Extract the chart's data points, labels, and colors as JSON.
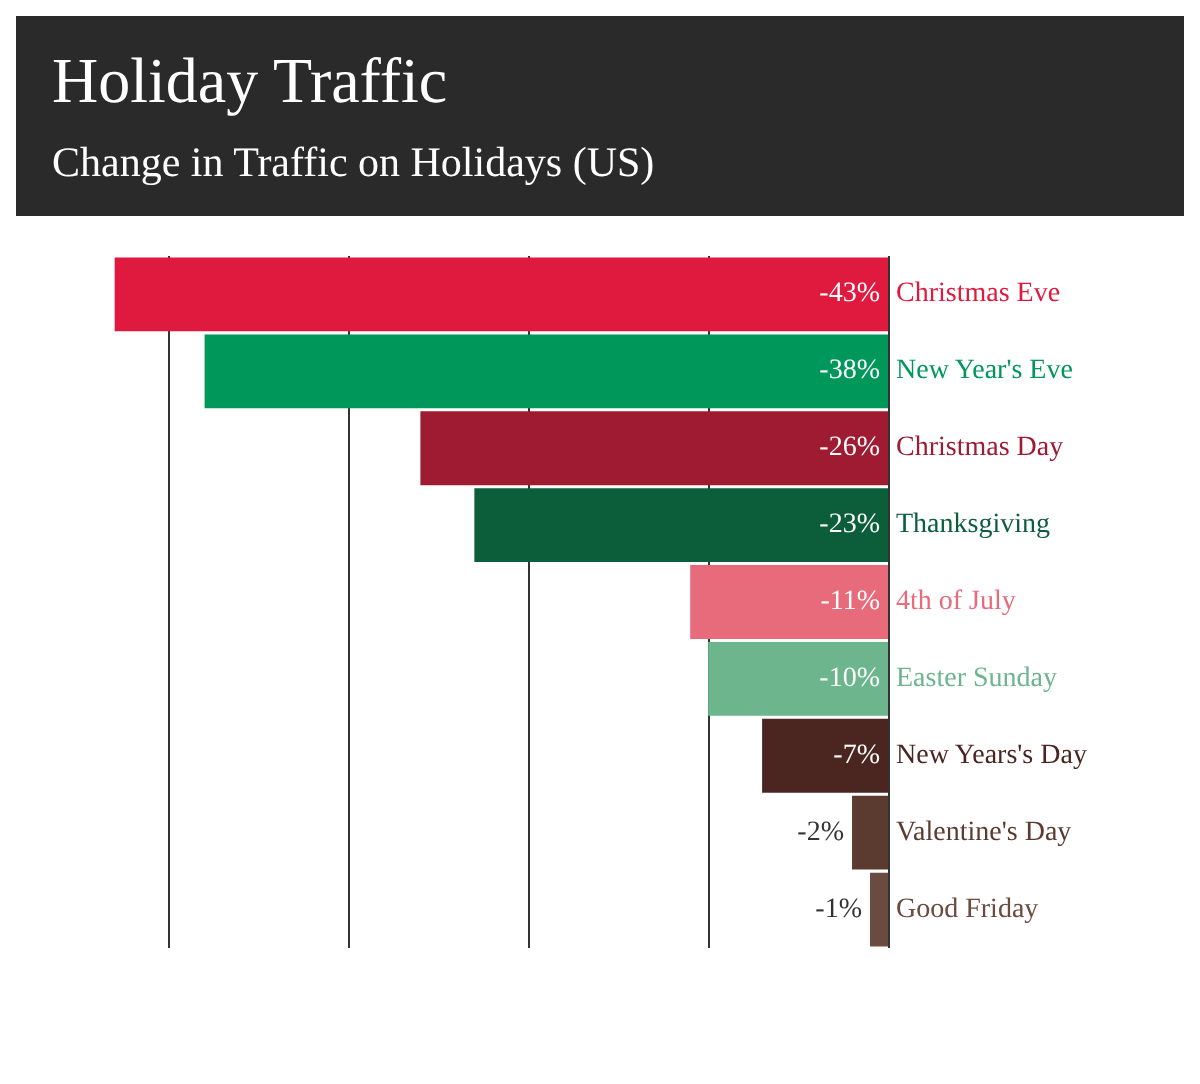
{
  "chart_data": {
    "type": "bar",
    "orientation": "horizontal",
    "title": "Holiday Traffic",
    "subtitle": "Change in Traffic on Holidays (US)",
    "categories": [
      "Christmas Eve",
      "New Year's Eve",
      "Christmas Day",
      "Thanksgiving",
      "4th of July",
      "Easter Sunday",
      "New Years's Day",
      "Valentine's Day",
      "Good Friday"
    ],
    "values": [
      -43,
      -38,
      -26,
      -23,
      -11,
      -10,
      -7,
      -2,
      -1
    ],
    "colors": [
      "#e0193e",
      "#00975a",
      "#9e1b32",
      "#0c5e3b",
      "#e86b7b",
      "#6db58d",
      "#4b2620",
      "#5b3a30",
      "#6b4a40"
    ],
    "value_labels": [
      "-43%",
      "-38%",
      "-26%",
      "-23%",
      "-11%",
      "-10%",
      "-7%",
      "-2%",
      "-1%"
    ],
    "xticks": [
      {
        "value": -40,
        "label": null
      },
      {
        "value": -30,
        "label": null
      },
      {
        "value": -20,
        "label": null
      },
      {
        "value": -10,
        "label": null
      },
      {
        "value": 0,
        "label": null
      }
    ],
    "grid": "x",
    "tick_labels": "y"
  }
}
